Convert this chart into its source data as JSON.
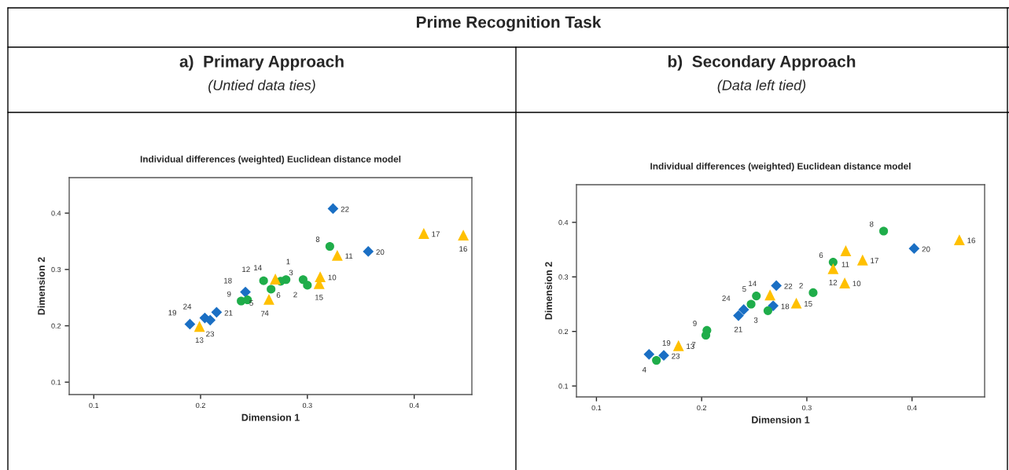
{
  "chart_data": [
    {
      "type": "scatter",
      "title": "a)  Primary Approach",
      "subtitle": "(Untied data ties)",
      "xlabel": "Dimension 1",
      "ylabel": "Dimension 2",
      "xlim": [
        0.077,
        0.454
      ],
      "ylim": [
        0.078,
        0.463
      ],
      "xticks": [
        0.1,
        0.2,
        0.3,
        0.4
      ],
      "yticks": [
        0.1,
        0.2,
        0.3,
        0.4
      ],
      "grid": false,
      "legend": false,
      "series": [
        {
          "color": "#1a6fc4",
          "marker": "diamond",
          "x": [
            0.324,
            0.357,
            0.242,
            0.215,
            0.19,
            0.204,
            0.209
          ],
          "values": [
            0.408,
            0.332,
            0.26,
            0.224,
            0.203,
            0.214,
            0.21
          ]
        },
        {
          "color": "#1fad4a",
          "marker": "circle",
          "x": [
            0.321,
            0.296,
            0.3,
            0.28,
            0.275,
            0.259,
            0.266,
            0.238,
            0.244
          ],
          "values": [
            0.341,
            0.282,
            0.272,
            0.282,
            0.279,
            0.28,
            0.265,
            0.244,
            0.246
          ]
        },
        {
          "color": "#ffc000",
          "marker": "triangle",
          "x": [
            0.328,
            0.409,
            0.446,
            0.312,
            0.311,
            0.27,
            0.264,
            0.199
          ],
          "values": [
            0.325,
            0.364,
            0.361,
            0.287,
            0.275,
            0.283,
            0.247,
            0.199
          ]
        }
      ],
      "annotations": [
        "Prime Recognition Task",
        "Individual differences (weighted) Euclidean distance model",
        {
          "text": "22",
          "x": 0.324,
          "y": 0.408
        },
        {
          "text": "20",
          "x": 0.357,
          "y": 0.332
        },
        {
          "text": "18",
          "x": 0.242,
          "y": 0.26
        },
        {
          "text": "21",
          "x": 0.215,
          "y": 0.224
        },
        {
          "text": "19",
          "x": 0.19,
          "y": 0.203
        },
        {
          "text": "24",
          "x": 0.204,
          "y": 0.214
        },
        {
          "text": "23",
          "x": 0.209,
          "y": 0.21
        },
        {
          "text": "8",
          "x": 0.321,
          "y": 0.341
        },
        {
          "text": "3",
          "x": 0.296,
          "y": 0.282
        },
        {
          "text": "2",
          "x": 0.3,
          "y": 0.272
        },
        {
          "text": "1",
          "x": 0.28,
          "y": 0.282
        },
        {
          "text": "6",
          "x": 0.275,
          "y": 0.279
        },
        {
          "text": "12",
          "x": 0.259,
          "y": 0.28
        },
        {
          "text": "5",
          "x": 0.266,
          "y": 0.265
        },
        {
          "text": "9",
          "x": 0.238,
          "y": 0.244
        },
        {
          "text": "7",
          "x": 0.244,
          "y": 0.246
        },
        {
          "text": "11",
          "x": 0.328,
          "y": 0.325
        },
        {
          "text": "17",
          "x": 0.409,
          "y": 0.364
        },
        {
          "text": "16",
          "x": 0.446,
          "y": 0.361
        },
        {
          "text": "10",
          "x": 0.312,
          "y": 0.287
        },
        {
          "text": "15",
          "x": 0.311,
          "y": 0.275
        },
        {
          "text": "14",
          "x": 0.27,
          "y": 0.283
        },
        {
          "text": "4",
          "x": 0.264,
          "y": 0.247
        },
        {
          "text": "13",
          "x": 0.199,
          "y": 0.199
        }
      ]
    },
    {
      "type": "scatter",
      "title": "b)  Secondary Approach",
      "subtitle": "(Data left tied)",
      "xlabel": "Dimension 1",
      "ylabel": "Dimension 2",
      "xlim": [
        0.081,
        0.469
      ],
      "ylim": [
        0.08,
        0.469
      ],
      "xticks": [
        0.1,
        0.2,
        0.3,
        0.4
      ],
      "yticks": [
        0.1,
        0.2,
        0.3,
        0.4
      ],
      "grid": false,
      "legend": false,
      "series": [
        {
          "color": "#1a6fc4",
          "marker": "diamond",
          "x": [
            0.15,
            0.164,
            0.235,
            0.24,
            0.271,
            0.268,
            0.402
          ],
          "values": [
            0.158,
            0.156,
            0.229,
            0.24,
            0.284,
            0.247,
            0.352
          ]
        },
        {
          "color": "#1fad4a",
          "marker": "circle",
          "x": [
            0.157,
            0.205,
            0.204,
            0.247,
            0.252,
            0.263,
            0.373,
            0.325,
            0.306
          ],
          "values": [
            0.147,
            0.202,
            0.193,
            0.25,
            0.265,
            0.238,
            0.384,
            0.327,
            0.271
          ]
        },
        {
          "color": "#ffc000",
          "marker": "triangle",
          "x": [
            0.178,
            0.265,
            0.445,
            0.337,
            0.353,
            0.325,
            0.336,
            0.29
          ],
          "values": [
            0.174,
            0.267,
            0.368,
            0.348,
            0.331,
            0.315,
            0.289,
            0.252
          ]
        }
      ],
      "annotations": [
        "Individual differences (weighted) Euclidean distance model",
        {
          "text": "19",
          "x": 0.15,
          "y": 0.158
        },
        {
          "text": "23",
          "x": 0.164,
          "y": 0.156
        },
        {
          "text": "21",
          "x": 0.235,
          "y": 0.229
        },
        {
          "text": "24",
          "x": 0.24,
          "y": 0.24
        },
        {
          "text": "22",
          "x": 0.271,
          "y": 0.284
        },
        {
          "text": "18",
          "x": 0.268,
          "y": 0.247
        },
        {
          "text": "20",
          "x": 0.402,
          "y": 0.352
        },
        {
          "text": "4",
          "x": 0.157,
          "y": 0.147
        },
        {
          "text": "9",
          "x": 0.205,
          "y": 0.202
        },
        {
          "text": "7",
          "x": 0.204,
          "y": 0.193
        },
        {
          "text": "5",
          "x": 0.252,
          "y": 0.265
        },
        {
          "text": "3",
          "x": 0.263,
          "y": 0.238
        },
        {
          "text": "8",
          "x": 0.373,
          "y": 0.384
        },
        {
          "text": "6",
          "x": 0.325,
          "y": 0.327
        },
        {
          "text": "2",
          "x": 0.306,
          "y": 0.271
        },
        {
          "text": "13",
          "x": 0.178,
          "y": 0.174
        },
        {
          "text": "14",
          "x": 0.265,
          "y": 0.267
        },
        {
          "text": "16",
          "x": 0.445,
          "y": 0.368
        },
        {
          "text": "11",
          "x": 0.337,
          "y": 0.348
        },
        {
          "text": "17",
          "x": 0.353,
          "y": 0.331
        },
        {
          "text": "12",
          "x": 0.325,
          "y": 0.315
        },
        {
          "text": "10",
          "x": 0.336,
          "y": 0.289
        },
        {
          "text": "15",
          "x": 0.29,
          "y": 0.252
        }
      ]
    }
  ]
}
